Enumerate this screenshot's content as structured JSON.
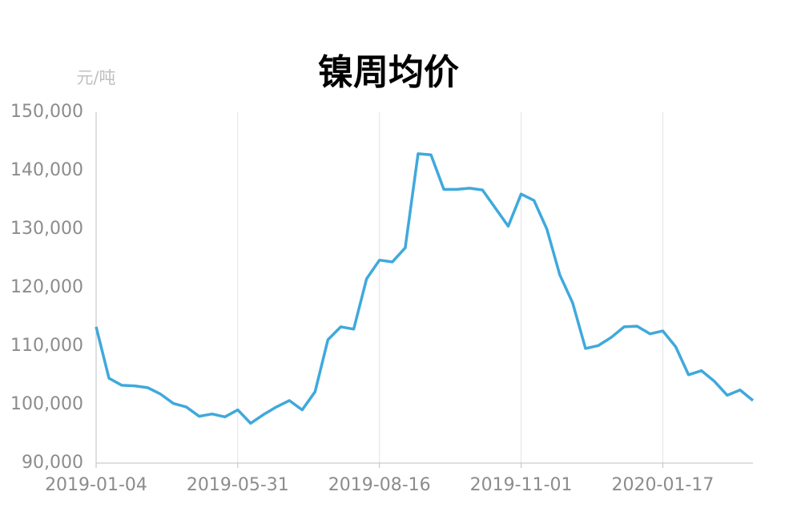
{
  "chart_data": {
    "type": "line",
    "title": "镍周均价",
    "y_unit": "元/吨",
    "categories": [
      "2019-01-04",
      null,
      null,
      null,
      null,
      null,
      null,
      null,
      null,
      null,
      null,
      "2019-05-31",
      null,
      null,
      null,
      null,
      null,
      null,
      null,
      null,
      null,
      null,
      "2019-08-16",
      null,
      null,
      null,
      null,
      null,
      null,
      null,
      null,
      null,
      null,
      "2019-11-01",
      null,
      null,
      null,
      null,
      null,
      null,
      null,
      null,
      null,
      null,
      "2020-01-17",
      null,
      null,
      null,
      null,
      null,
      null,
      null
    ],
    "series": [
      {
        "name": "镍周均价",
        "color": "#3fa9dc",
        "values": [
          113300,
          104500,
          103300,
          103200,
          102900,
          101800,
          100200,
          99600,
          98000,
          98400,
          97900,
          99100,
          96800,
          98300,
          99600,
          100700,
          99100,
          102200,
          111100,
          113300,
          112900,
          121500,
          124700,
          124400,
          126800,
          142900,
          142700,
          136800,
          136800,
          137000,
          136700,
          133600,
          130500,
          136000,
          134900,
          130000,
          122200,
          117400,
          109600,
          110100,
          111500,
          113300,
          113400,
          112100,
          112600,
          109900,
          105100,
          105800,
          104000,
          101600,
          102500,
          100700
        ]
      }
    ],
    "ylim": [
      90000,
      150000
    ],
    "yticks": [
      {
        "value": 90000,
        "label": "90,000"
      },
      {
        "value": 100000,
        "label": "100,000"
      },
      {
        "value": 110000,
        "label": "110,000"
      },
      {
        "value": 120000,
        "label": "120,000"
      },
      {
        "value": 130000,
        "label": "130,000"
      },
      {
        "value": 140000,
        "label": "140,000"
      },
      {
        "value": 150000,
        "label": "150,000"
      }
    ],
    "grid": true
  }
}
